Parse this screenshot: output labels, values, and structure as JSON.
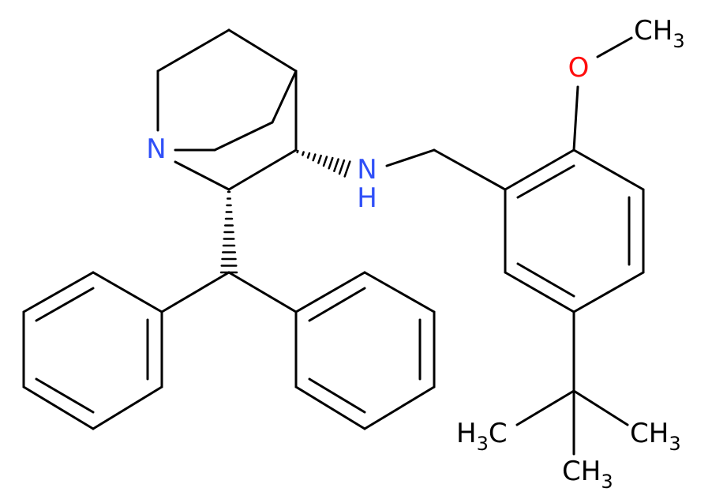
{
  "labels": {
    "ring_n": "N",
    "amine_n": "N",
    "amine_h": "H",
    "oxygen": "O",
    "methoxy": [
      "CH",
      "3"
    ],
    "tbu_left": [
      "H",
      "3",
      "C"
    ],
    "tbu_right": [
      "CH",
      "3"
    ],
    "tbu_bottom": [
      "CH",
      "3"
    ]
  }
}
